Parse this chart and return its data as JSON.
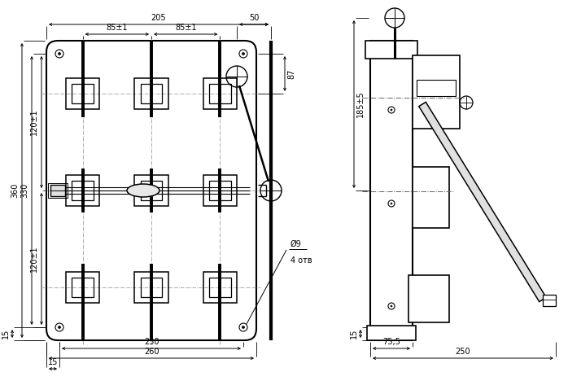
{
  "bg": "#ffffff",
  "lc": "#000000",
  "dc": "#000000",
  "fs": 7.0,
  "dims": {
    "260": "260",
    "230": "230",
    "15b": "15",
    "15l": "15",
    "360": "360",
    "330": "330",
    "120top": "120±1",
    "120bot": "120±1",
    "205": "205",
    "85l": "85±1",
    "85r": "85±1",
    "87": "87",
    "50": "50",
    "185": "185±5",
    "250": "250",
    "755": "75,5",
    "15s": "15",
    "o9": "Ø9",
    "4otv": "4 отв"
  }
}
